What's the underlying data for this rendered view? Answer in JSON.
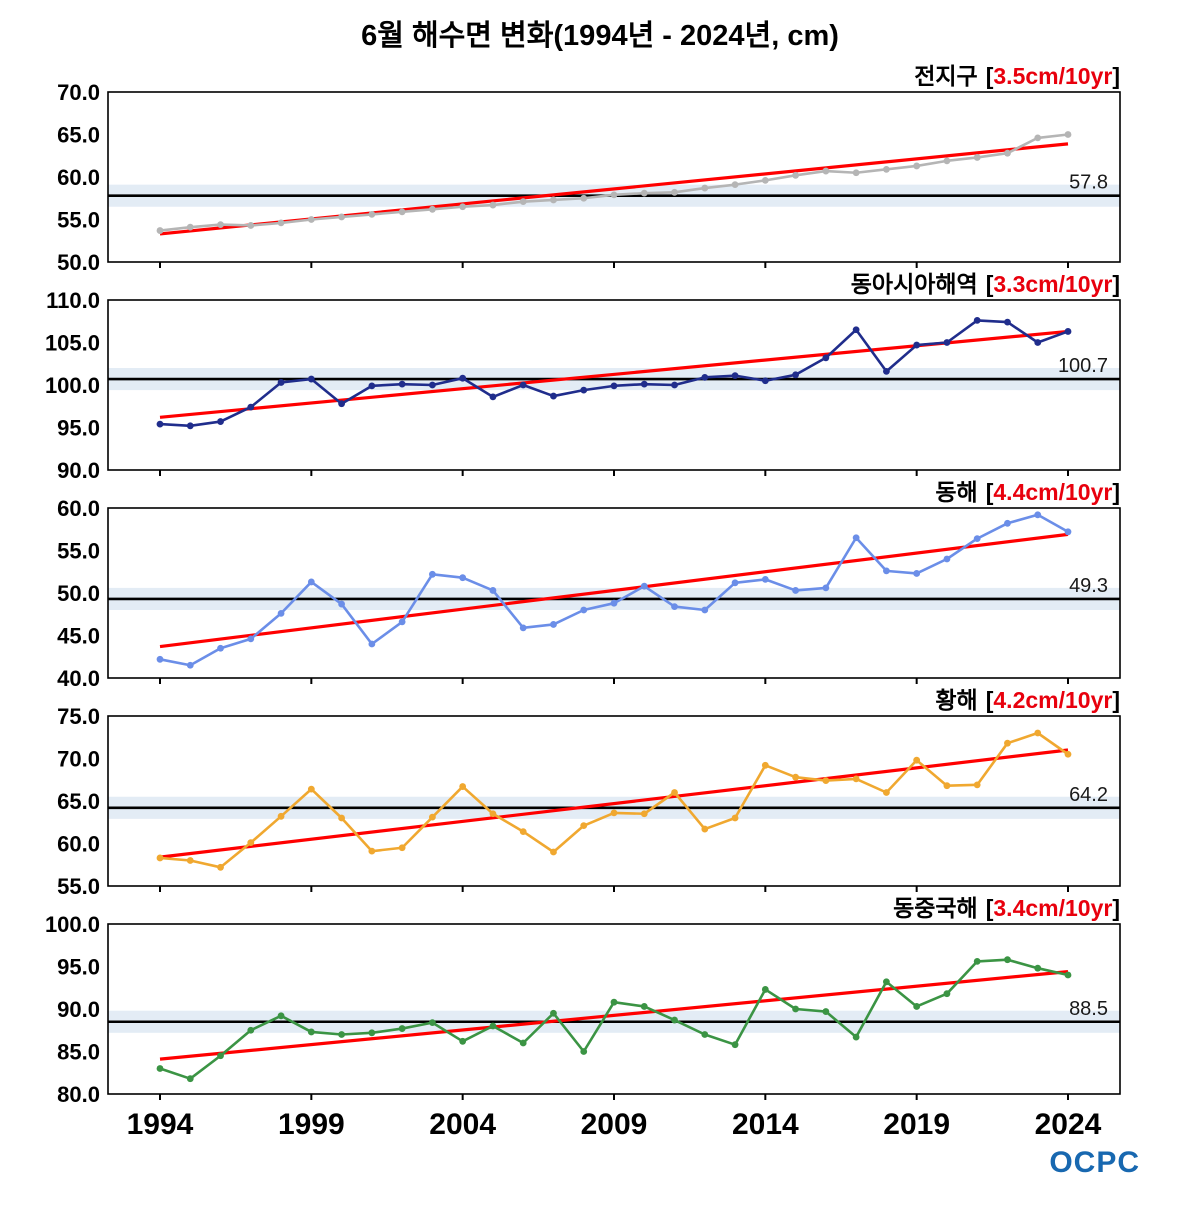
{
  "ui": {
    "bracket_open": "[",
    "bracket_close": "]"
  },
  "footer": {
    "logo_text": "OCPC"
  },
  "chart_data": {
    "type": "line",
    "title": "6월 해수면 변화(1994년 - 2024년, cm)",
    "unit": "cm",
    "years": [
      1994,
      1995,
      1996,
      1997,
      1998,
      1999,
      2000,
      2001,
      2002,
      2003,
      2004,
      2005,
      2006,
      2007,
      2008,
      2009,
      2010,
      2011,
      2012,
      2013,
      2014,
      2015,
      2016,
      2017,
      2018,
      2019,
      2020,
      2021,
      2022,
      2023,
      2024
    ],
    "x_ticks": [
      1994,
      1999,
      2004,
      2009,
      2014,
      2019,
      2024
    ],
    "trend_color": "#ff0000",
    "band_color": "#d9e5f2",
    "mean_line_color": "#000000",
    "panels": [
      {
        "region": "전지구",
        "rate": "3.5cm/10yr",
        "mean": 57.8,
        "ylim": [
          50,
          70
        ],
        "ytick_step": 5,
        "band_half": 1.3,
        "color": "#b5b5b5",
        "trend": {
          "start": 53.3,
          "end": 63.9
        },
        "values": [
          53.7,
          54.1,
          54.4,
          54.3,
          54.6,
          55.0,
          55.3,
          55.6,
          55.9,
          56.2,
          56.5,
          56.7,
          57.1,
          57.3,
          57.5,
          57.9,
          58.1,
          58.2,
          58.7,
          59.1,
          59.6,
          60.2,
          60.7,
          60.5,
          60.9,
          61.3,
          61.9,
          62.3,
          62.8,
          64.6,
          65.0
        ]
      },
      {
        "region": "동아시아해역",
        "rate": "3.3cm/10yr",
        "mean": 100.7,
        "ylim": [
          90,
          110
        ],
        "ytick_step": 5,
        "band_half": 1.3,
        "color": "#202d8c",
        "trend": {
          "start": 96.2,
          "end": 106.3
        },
        "values": [
          95.4,
          95.2,
          95.7,
          97.4,
          100.3,
          100.7,
          97.8,
          99.9,
          100.1,
          100.0,
          100.8,
          98.6,
          100.0,
          98.7,
          99.4,
          99.9,
          100.1,
          100.0,
          100.9,
          101.1,
          100.5,
          101.2,
          103.2,
          106.5,
          101.6,
          104.7,
          105.0,
          107.6,
          107.4,
          105.0,
          106.3
        ]
      },
      {
        "region": "동해",
        "rate": "4.4cm/10yr",
        "mean": 49.3,
        "ylim": [
          40,
          60
        ],
        "ytick_step": 5,
        "band_half": 1.3,
        "color": "#6b8ee8",
        "trend": {
          "start": 43.7,
          "end": 56.9
        },
        "values": [
          42.2,
          41.5,
          43.5,
          44.6,
          47.6,
          51.3,
          48.7,
          44.0,
          46.6,
          52.2,
          51.8,
          50.3,
          45.9,
          46.3,
          48.0,
          48.8,
          50.8,
          48.4,
          48.0,
          51.2,
          51.6,
          50.3,
          50.6,
          56.5,
          52.6,
          52.3,
          54.0,
          56.4,
          58.2,
          59.2,
          57.2
        ]
      },
      {
        "region": "황해",
        "rate": "4.2cm/10yr",
        "mean": 64.2,
        "ylim": [
          55,
          75
        ],
        "ytick_step": 5,
        "band_half": 1.3,
        "color": "#f0a830",
        "trend": {
          "start": 58.4,
          "end": 71.0
        },
        "values": [
          58.3,
          58.0,
          57.2,
          60.1,
          63.2,
          66.4,
          63.0,
          59.1,
          59.5,
          63.1,
          66.7,
          63.5,
          61.4,
          59.0,
          62.1,
          63.6,
          63.5,
          66.0,
          61.7,
          63.0,
          69.2,
          67.8,
          67.4,
          67.6,
          66.0,
          69.8,
          66.8,
          66.9,
          71.8,
          73.0,
          70.5
        ]
      },
      {
        "region": "동중국해",
        "rate": "3.4cm/10yr",
        "mean": 88.5,
        "ylim": [
          80,
          100
        ],
        "ytick_step": 5,
        "band_half": 1.3,
        "color": "#3b9444",
        "trend": {
          "start": 84.1,
          "end": 94.4
        },
        "values": [
          83.0,
          81.8,
          84.5,
          87.5,
          89.2,
          87.3,
          87.0,
          87.2,
          87.7,
          88.4,
          86.2,
          88.0,
          86.0,
          89.5,
          85.0,
          90.8,
          90.3,
          88.7,
          87.0,
          85.8,
          92.3,
          90.0,
          89.7,
          86.7,
          93.2,
          90.3,
          91.8,
          95.6,
          95.8,
          94.8,
          94.0
        ]
      }
    ]
  }
}
